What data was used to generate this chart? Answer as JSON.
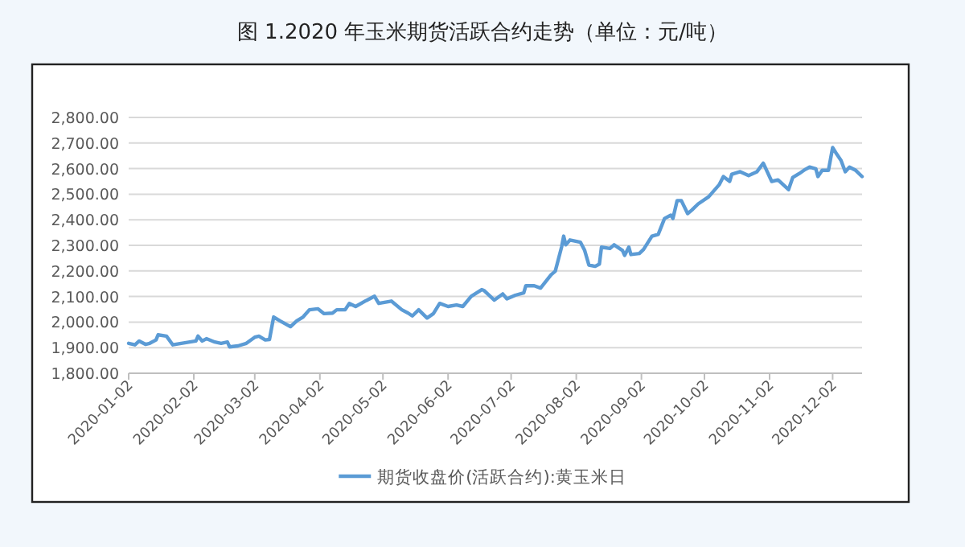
{
  "chart_data": {
    "type": "line",
    "title": "图 1.2020 年玉米期货活跃合约走势（单位：元/吨）",
    "x": [
      "2020-01-02",
      "2020-01-05",
      "2020-01-07",
      "2020-01-10",
      "2020-01-12",
      "2020-01-15",
      "2020-01-16",
      "2020-01-20",
      "2020-01-23",
      "2020-01-27",
      "2020-02-03",
      "2020-02-04",
      "2020-02-06",
      "2020-02-08",
      "2020-02-12",
      "2020-02-15",
      "2020-02-18",
      "2020-02-19",
      "2020-02-23",
      "2020-02-27",
      "2020-03-02",
      "2020-03-04",
      "2020-03-07",
      "2020-03-09",
      "2020-03-11",
      "2020-03-14",
      "2020-03-19",
      "2020-03-22",
      "2020-03-25",
      "2020-03-28",
      "2020-04-01",
      "2020-04-04",
      "2020-04-08",
      "2020-04-10",
      "2020-04-14",
      "2020-04-16",
      "2020-04-19",
      "2020-04-24",
      "2020-04-28",
      "2020-04-30",
      "2020-05-06",
      "2020-05-11",
      "2020-05-14",
      "2020-05-16",
      "2020-05-19",
      "2020-05-23",
      "2020-05-26",
      "2020-05-29",
      "2020-06-02",
      "2020-06-06",
      "2020-06-09",
      "2020-06-13",
      "2020-06-18",
      "2020-06-19",
      "2020-06-24",
      "2020-06-28",
      "2020-06-30",
      "2020-07-04",
      "2020-07-08",
      "2020-07-09",
      "2020-07-13",
      "2020-07-16",
      "2020-07-21",
      "2020-07-23",
      "2020-07-26",
      "2020-07-27",
      "2020-07-28",
      "2020-07-30",
      "2020-08-04",
      "2020-08-06",
      "2020-08-08",
      "2020-08-11",
      "2020-08-13",
      "2020-08-14",
      "2020-08-18",
      "2020-08-20",
      "2020-08-24",
      "2020-08-25",
      "2020-08-27",
      "2020-08-28",
      "2020-09-01",
      "2020-09-03",
      "2020-09-07",
      "2020-09-10",
      "2020-09-13",
      "2020-09-16",
      "2020-09-17",
      "2020-09-19",
      "2020-09-21",
      "2020-09-24",
      "2020-09-26",
      "2020-09-29",
      "2020-10-04",
      "2020-10-09",
      "2020-10-11",
      "2020-10-14",
      "2020-10-15",
      "2020-10-19",
      "2020-10-23",
      "2020-10-27",
      "2020-10-30",
      "2020-11-03",
      "2020-11-06",
      "2020-11-11",
      "2020-11-13",
      "2020-11-16",
      "2020-11-19",
      "2020-11-21",
      "2020-11-24",
      "2020-11-25",
      "2020-11-27",
      "2020-11-30",
      "2020-12-02",
      "2020-12-04",
      "2020-12-06",
      "2020-12-08",
      "2020-12-10",
      "2020-12-13",
      "2020-12-16"
    ],
    "series": [
      {
        "name": "期货收盘价(活跃合约):黄玉米日",
        "color": "#5b9bd5",
        "values": [
          1917,
          1911,
          1926,
          1913,
          1917,
          1930,
          1950,
          1945,
          1911,
          1917,
          1926,
          1945,
          1926,
          1935,
          1922,
          1917,
          1922,
          1903,
          1907,
          1917,
          1941,
          1945,
          1930,
          1932,
          2020,
          2005,
          1982,
          2005,
          2020,
          2048,
          2052,
          2033,
          2035,
          2048,
          2048,
          2073,
          2061,
          2084,
          2101,
          2073,
          2082,
          2048,
          2035,
          2024,
          2048,
          2016,
          2033,
          2073,
          2061,
          2067,
          2061,
          2101,
          2127,
          2124,
          2086,
          2110,
          2091,
          2105,
          2114,
          2142,
          2142,
          2133,
          2185,
          2199,
          2293,
          2336,
          2302,
          2321,
          2312,
          2280,
          2223,
          2218,
          2227,
          2293,
          2288,
          2302,
          2280,
          2261,
          2293,
          2264,
          2268,
          2284,
          2336,
          2343,
          2405,
          2418,
          2405,
          2475,
          2475,
          2424,
          2438,
          2462,
          2490,
          2537,
          2569,
          2550,
          2578,
          2588,
          2573,
          2588,
          2621,
          2550,
          2556,
          2518,
          2565,
          2580,
          2597,
          2606,
          2599,
          2569,
          2593,
          2593,
          2682,
          2656,
          2632,
          2588,
          2606,
          2593,
          2569
        ]
      }
    ],
    "xlim": [
      "2020-01-02",
      "2020-12-16"
    ],
    "xticks": [
      "2020-01-02",
      "2020-02-02",
      "2020-03-02",
      "2020-04-02",
      "2020-05-02",
      "2020-06-02",
      "2020-07-02",
      "2020-08-02",
      "2020-09-02",
      "2020-10-02",
      "2020-11-02",
      "2020-12-02"
    ],
    "ylim": [
      1800,
      2800
    ],
    "yticks": [
      {
        "value": 1800,
        "label": "1,800.00"
      },
      {
        "value": 1900,
        "label": "1,900.00"
      },
      {
        "value": 2000,
        "label": "2,000.00"
      },
      {
        "value": 2100,
        "label": "2,100.00"
      },
      {
        "value": 2200,
        "label": "2,200.00"
      },
      {
        "value": 2300,
        "label": "2,300.00"
      },
      {
        "value": 2400,
        "label": "2,400.00"
      },
      {
        "value": 2500,
        "label": "2,500.00"
      },
      {
        "value": 2600,
        "label": "2,600.00"
      },
      {
        "value": 2700,
        "label": "2,700.00"
      },
      {
        "value": 2800,
        "label": "2,800.00"
      }
    ],
    "grid": "y",
    "legend": "bottom",
    "line_style": "solid"
  }
}
